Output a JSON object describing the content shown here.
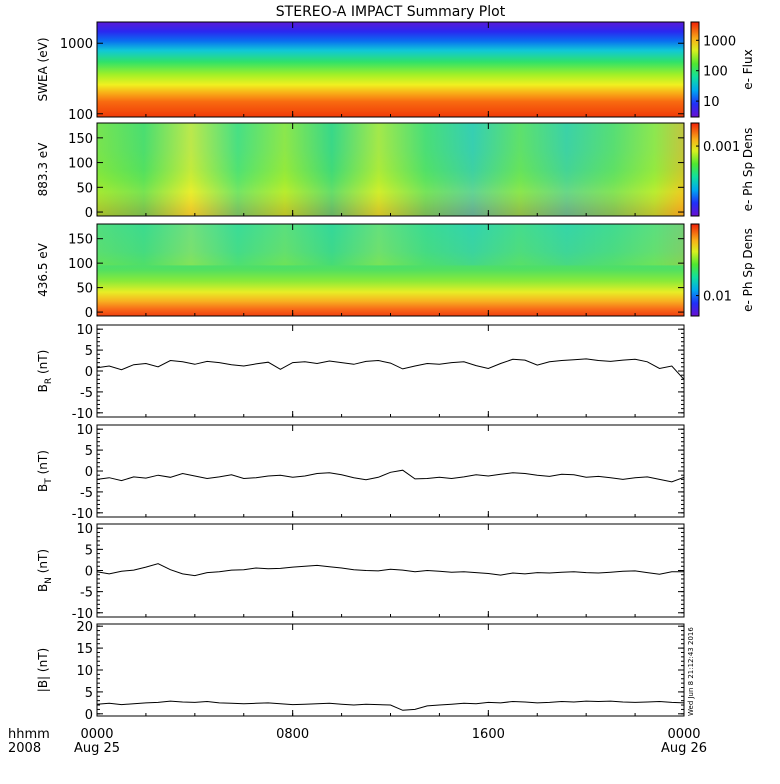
{
  "chart_data": {
    "type": "multi-panel time series",
    "title": "STEREO-A IMPACT Summary Plot",
    "x_axis": {
      "row1_label": "hhmm",
      "row2_label": "2008",
      "ticks": [
        {
          "top": "0000",
          "bottom": "Aug 25",
          "hour": 0
        },
        {
          "top": "0800",
          "bottom": "",
          "hour": 8
        },
        {
          "top": "1600",
          "bottom": "",
          "hour": 16
        },
        {
          "top": "0000",
          "bottom": "Aug 26",
          "hour": 24
        }
      ],
      "range_hours": [
        0,
        24
      ]
    },
    "timestamp": "Wed Jun  8 21:12:43 2016",
    "spectrograms": [
      {
        "name": "swea",
        "ylabel": "SWEA (eV)",
        "yscale": "log",
        "ylim": [
          90,
          2000
        ],
        "ytick_labels": [
          "1000",
          "100"
        ],
        "ytick_values": [
          1000,
          100
        ],
        "colorbar_label": "e- Flux",
        "colorbar_scale": "log",
        "colorbar_range": [
          3,
          4000
        ],
        "colorbar_tick_labels": [
          "1000",
          "100",
          "10"
        ],
        "colorbar_tick_values": [
          1000,
          100,
          10
        ]
      },
      {
        "name": "pad883",
        "ylabel": "883.3 eV",
        "yscale": "linear",
        "ylim": [
          -8,
          180
        ],
        "ytick_labels": [
          "150",
          "100",
          "50",
          "0"
        ],
        "ytick_values": [
          150,
          100,
          50,
          0
        ],
        "colorbar_label": "e- Ph Sp Dens",
        "colorbar_scale": "log",
        "colorbar_range": [
          0.0002,
          0.0017
        ],
        "colorbar_tick_labels": [
          "0.001"
        ],
        "colorbar_tick_values": [
          0.001
        ]
      },
      {
        "name": "pad436",
        "ylabel": "436.5 eV",
        "yscale": "linear",
        "ylim": [
          -8,
          180
        ],
        "ytick_labels": [
          "150",
          "100",
          "50",
          "0"
        ],
        "ytick_values": [
          150,
          100,
          50,
          0
        ],
        "colorbar_label": "e- Ph Sp Dens",
        "colorbar_scale": "log",
        "colorbar_range": [
          0.006,
          0.06
        ],
        "colorbar_tick_labels": [
          "0.01"
        ],
        "colorbar_tick_values": [
          0.01
        ]
      }
    ],
    "line_panels": [
      {
        "name": "br",
        "ylabel_main": "B",
        "ylabel_sub": "R",
        "ylabel_unit": " (nT)",
        "ylim": [
          -11,
          11
        ],
        "ytick_labels": [
          "10",
          "5",
          "0",
          "-5",
          "-10"
        ],
        "ytick_values": [
          10,
          5,
          0,
          -5,
          -10
        ],
        "series": {
          "x_hours": [
            0,
            0.5,
            1,
            1.5,
            2,
            2.5,
            3,
            3.5,
            4,
            4.5,
            5,
            5.5,
            6,
            6.5,
            7,
            7.5,
            8,
            8.5,
            9,
            9.5,
            10,
            10.5,
            11,
            11.5,
            12,
            12.5,
            13,
            13.5,
            14,
            14.5,
            15,
            15.5,
            16,
            16.5,
            17,
            17.5,
            18,
            18.5,
            19,
            19.5,
            20,
            20.5,
            21,
            21.5,
            22,
            22.5,
            23,
            23.5,
            24
          ],
          "values": [
            0.8,
            1.2,
            0.3,
            1.5,
            1.8,
            1.0,
            2.5,
            2.2,
            1.6,
            2.3,
            2.0,
            1.5,
            1.2,
            1.7,
            2.1,
            0.4,
            2.0,
            2.2,
            1.8,
            2.4,
            2.0,
            1.6,
            2.3,
            2.5,
            1.9,
            0.5,
            1.2,
            1.8,
            1.6,
            2.0,
            2.2,
            1.3,
            0.6,
            1.8,
            2.8,
            2.6,
            1.4,
            2.2,
            2.5,
            2.7,
            2.9,
            2.5,
            2.3,
            2.6,
            2.8,
            2.2,
            0.6,
            1.2,
            -2.0
          ]
        }
      },
      {
        "name": "bt",
        "ylabel_main": "B",
        "ylabel_sub": "T",
        "ylabel_unit": " (nT)",
        "ylim": [
          -11,
          11
        ],
        "ytick_labels": [
          "10",
          "5",
          "0",
          "-5",
          "-10"
        ],
        "ytick_values": [
          10,
          5,
          0,
          -5,
          -10
        ],
        "series": {
          "x_hours": [
            0,
            0.5,
            1,
            1.5,
            2,
            2.5,
            3,
            3.5,
            4,
            4.5,
            5,
            5.5,
            6,
            6.5,
            7,
            7.5,
            8,
            8.5,
            9,
            9.5,
            10,
            10.5,
            11,
            11.5,
            12,
            12.5,
            13,
            13.5,
            14,
            14.5,
            15,
            15.5,
            16,
            16.5,
            17,
            17.5,
            18,
            18.5,
            19,
            19.5,
            20,
            20.5,
            21,
            21.5,
            22,
            22.5,
            23,
            23.5,
            24
          ],
          "values": [
            -2.0,
            -1.6,
            -2.3,
            -1.4,
            -1.7,
            -1.0,
            -1.5,
            -0.6,
            -1.2,
            -1.8,
            -1.4,
            -0.9,
            -1.8,
            -1.6,
            -1.2,
            -1.0,
            -1.5,
            -1.2,
            -0.6,
            -0.4,
            -0.9,
            -1.6,
            -2.1,
            -1.5,
            -0.3,
            0.2,
            -1.9,
            -1.8,
            -1.5,
            -1.8,
            -1.4,
            -0.9,
            -1.2,
            -0.8,
            -0.4,
            -0.6,
            -1.0,
            -1.3,
            -0.8,
            -0.9,
            -1.5,
            -1.3,
            -1.6,
            -2.0,
            -1.6,
            -1.4,
            -2.0,
            -2.6,
            -1.5
          ]
        }
      },
      {
        "name": "bn",
        "ylabel_main": "B",
        "ylabel_sub": "N",
        "ylabel_unit": " (nT)",
        "ylim": [
          -11,
          11
        ],
        "ytick_labels": [
          "10",
          "5",
          "0",
          "-5",
          "-10"
        ],
        "ytick_values": [
          10,
          5,
          0,
          -5,
          -10
        ],
        "series": {
          "x_hours": [
            0,
            0.5,
            1,
            1.5,
            2,
            2.5,
            3,
            3.5,
            4,
            4.5,
            5,
            5.5,
            6,
            6.5,
            7,
            7.5,
            8,
            8.5,
            9,
            9.5,
            10,
            10.5,
            11,
            11.5,
            12,
            12.5,
            13,
            13.5,
            14,
            14.5,
            15,
            15.5,
            16,
            16.5,
            17,
            17.5,
            18,
            18.5,
            19,
            19.5,
            20,
            20.5,
            21,
            21.5,
            22,
            22.5,
            23,
            23.5,
            24
          ],
          "values": [
            -0.3,
            -0.8,
            -0.2,
            0.1,
            0.8,
            1.6,
            0.2,
            -0.8,
            -1.2,
            -0.5,
            -0.3,
            0.1,
            0.2,
            0.6,
            0.4,
            0.5,
            0.8,
            1.0,
            1.2,
            0.9,
            0.6,
            0.2,
            0.0,
            -0.1,
            0.3,
            0.1,
            -0.3,
            0.0,
            -0.2,
            -0.4,
            -0.3,
            -0.5,
            -0.7,
            -1.1,
            -0.6,
            -0.8,
            -0.5,
            -0.6,
            -0.4,
            -0.3,
            -0.5,
            -0.6,
            -0.4,
            -0.2,
            -0.1,
            -0.5,
            -0.9,
            -0.3,
            -0.3
          ]
        }
      },
      {
        "name": "bmag",
        "ylabel_main": "|B| (nT)",
        "ylabel_sub": "",
        "ylabel_unit": "",
        "ylim": [
          -0.5,
          20.5
        ],
        "ytick_labels": [
          "20",
          "15",
          "10",
          "5",
          "0"
        ],
        "ytick_values": [
          20,
          15,
          10,
          5,
          0
        ],
        "series": {
          "x_hours": [
            0,
            0.5,
            1,
            1.5,
            2,
            2.5,
            3,
            3.5,
            4,
            4.5,
            5,
            5.5,
            6,
            6.5,
            7,
            7.5,
            8,
            8.5,
            9,
            9.5,
            10,
            10.5,
            11,
            11.5,
            12,
            12.5,
            13,
            13.5,
            14,
            14.5,
            15,
            15.5,
            16,
            16.5,
            17,
            17.5,
            18,
            18.5,
            19,
            19.5,
            20,
            20.5,
            21,
            21.5,
            22,
            22.5,
            23,
            23.5,
            24
          ],
          "values": [
            2.2,
            2.4,
            2.1,
            2.3,
            2.5,
            2.6,
            2.9,
            2.7,
            2.6,
            2.8,
            2.5,
            2.4,
            2.3,
            2.4,
            2.5,
            2.3,
            2.1,
            2.2,
            2.3,
            2.4,
            2.2,
            2.0,
            2.2,
            2.1,
            2.0,
            0.8,
            1.0,
            1.8,
            2.0,
            2.2,
            2.4,
            2.3,
            2.6,
            2.5,
            2.8,
            2.7,
            2.5,
            2.6,
            2.8,
            2.7,
            2.9,
            2.8,
            2.9,
            2.7,
            2.6,
            2.7,
            2.8,
            2.6,
            2.5
          ]
        }
      }
    ]
  }
}
